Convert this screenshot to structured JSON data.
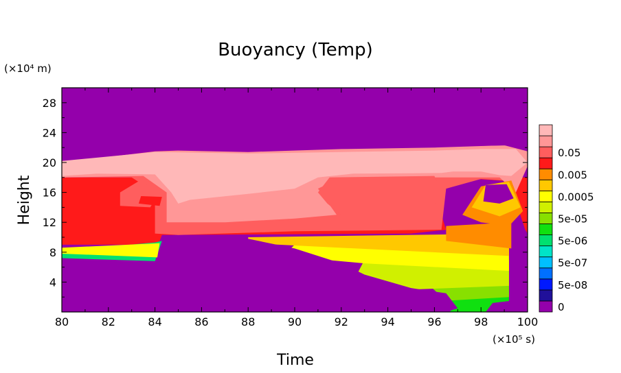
{
  "chart_data": {
    "type": "heatmap",
    "title": "Buoyancy (Temp)",
    "xlabel": "Time",
    "ylabel": "Height",
    "x_unit": "(×10⁵ s)",
    "y_unit": "(×10⁴ m)",
    "xlim": [
      80,
      100
    ],
    "ylim": [
      0,
      30
    ],
    "x_ticks": [
      "80",
      "82",
      "84",
      "86",
      "88",
      "90",
      "92",
      "94",
      "96",
      "98",
      "100"
    ],
    "y_ticks": [
      "4",
      "8",
      "12",
      "16",
      "20",
      "24",
      "28"
    ],
    "levels": [
      {
        "label": "0",
        "color": "#9400ab"
      },
      {
        "label": "",
        "color": "#20109a"
      },
      {
        "label": "5e-08",
        "color": "#0019ff"
      },
      {
        "label": "",
        "color": "#0070ff"
      },
      {
        "label": "5e-07",
        "color": "#00c0ff"
      },
      {
        "label": "",
        "color": "#00e4c8"
      },
      {
        "label": "5e-06",
        "color": "#00e070"
      },
      {
        "label": "",
        "color": "#10e010"
      },
      {
        "label": "5e-05",
        "color": "#88e000"
      },
      {
        "label": "",
        "color": "#d0f000"
      },
      {
        "label": "0.0005",
        "color": "#ffff00"
      },
      {
        "label": "",
        "color": "#ffc800"
      },
      {
        "label": "0.005",
        "color": "#ff8c00"
      },
      {
        "label": "",
        "color": "#ff1a1a"
      },
      {
        "label": "0.05",
        "color": "#ff5e5e"
      },
      {
        "label": "",
        "color": "#ff9797"
      },
      {
        "label": "",
        "color": "#ffb8b8"
      }
    ],
    "regions": [
      {
        "level": 7,
        "points": [
          [
            96.7,
            0
          ],
          [
            99.2,
            0
          ],
          [
            99.2,
            3.5
          ],
          [
            98,
            5
          ],
          [
            96.5,
            2
          ]
        ]
      },
      {
        "level": 8,
        "points": [
          [
            96.5,
            1.5
          ],
          [
            99.2,
            2
          ],
          [
            99.2,
            6
          ],
          [
            97,
            5.5
          ],
          [
            95.8,
            3.5
          ]
        ]
      },
      {
        "level": 9,
        "points": [
          [
            92.5,
            4
          ],
          [
            95,
            3
          ],
          [
            99.2,
            3.5
          ],
          [
            99.2,
            7
          ],
          [
            93,
            7
          ]
        ]
      },
      {
        "level": 10,
        "points": [
          [
            89.5,
            7.5
          ],
          [
            93,
            6.5
          ],
          [
            99.2,
            5.5
          ],
          [
            99.2,
            9
          ],
          [
            90,
            9
          ]
        ]
      },
      {
        "level": 11,
        "points": [
          [
            88,
            9.2
          ],
          [
            99.2,
            7.5
          ],
          [
            99.2,
            10.5
          ],
          [
            88,
            10
          ]
        ]
      },
      {
        "level": 12,
        "points": [
          [
            96.5,
            9.5
          ],
          [
            99.3,
            8.5
          ],
          [
            99.3,
            12
          ],
          [
            96.5,
            11.5
          ]
        ]
      },
      {
        "level": 13,
        "points": [
          [
            84.3,
            10.3
          ],
          [
            95,
            10.5
          ],
          [
            96.5,
            11
          ],
          [
            96,
            16
          ],
          [
            97.8,
            17.8
          ],
          [
            99.2,
            17.5
          ],
          [
            99.9,
            11
          ],
          [
            100,
            10.5
          ],
          [
            100,
            18
          ],
          [
            80,
            18
          ],
          [
            80,
            9
          ],
          [
            83.9,
            9
          ],
          [
            84.2,
            9.5
          ]
        ]
      },
      {
        "level": 6,
        "points": [
          [
            80,
            7.2
          ],
          [
            84,
            6.8
          ],
          [
            84.3,
            9.5
          ],
          [
            84,
            9.3
          ],
          [
            80,
            8.2
          ]
        ]
      },
      {
        "level": 10,
        "points": [
          [
            80,
            7.8
          ],
          [
            84.1,
            7.3
          ],
          [
            84.2,
            9.2
          ],
          [
            80,
            8.6
          ]
        ]
      },
      {
        "level": 14,
        "points": [
          [
            80,
            18
          ],
          [
            83,
            18
          ],
          [
            84,
            16
          ],
          [
            84,
            10.5
          ],
          [
            85,
            10.3
          ],
          [
            90,
            10.8
          ],
          [
            96.3,
            11
          ],
          [
            96.5,
            16.5
          ],
          [
            98,
            17.8
          ],
          [
            99.4,
            17.5
          ],
          [
            100,
            20
          ],
          [
            80,
            20
          ]
        ]
      },
      {
        "level": 15,
        "points": [
          [
            80,
            20
          ],
          [
            84,
            21.5
          ],
          [
            85,
            21.6
          ],
          [
            88,
            21.4
          ],
          [
            92,
            21.8
          ],
          [
            96,
            22
          ],
          [
            98,
            22.2
          ],
          [
            99,
            22.3
          ],
          [
            100,
            21.5
          ],
          [
            100,
            19.5
          ],
          [
            99.5,
            16
          ],
          [
            98.8,
            18
          ],
          [
            96.5,
            18
          ],
          [
            92,
            18
          ],
          [
            91,
            16.5
          ],
          [
            91.8,
            13
          ],
          [
            90,
            12.5
          ],
          [
            87,
            12
          ],
          [
            84.5,
            12
          ],
          [
            84.5,
            16
          ],
          [
            83.5,
            18.2
          ],
          [
            80,
            18
          ]
        ]
      },
      {
        "level": 16,
        "points": [
          [
            80,
            20.2
          ],
          [
            84,
            21.4
          ],
          [
            88,
            21.2
          ],
          [
            92,
            21.4
          ],
          [
            96,
            21.6
          ],
          [
            98,
            21.8
          ],
          [
            99.5,
            21.8
          ],
          [
            100,
            20
          ],
          [
            99.3,
            18.2
          ],
          [
            98.8,
            18.3
          ],
          [
            98,
            18.8
          ],
          [
            96.8,
            18.8
          ],
          [
            96.3,
            18.6
          ],
          [
            92.5,
            18.5
          ],
          [
            91,
            18
          ],
          [
            90,
            16.5
          ],
          [
            88,
            15.8
          ],
          [
            85.5,
            15
          ],
          [
            85,
            14.5
          ],
          [
            84.7,
            16
          ],
          [
            84,
            18.4
          ],
          [
            81.5,
            18.5
          ],
          [
            80,
            18.2
          ]
        ]
      },
      {
        "level": 14,
        "points": [
          [
            82.5,
            16
          ],
          [
            83.3,
            17.5
          ],
          [
            84.2,
            16.2
          ],
          [
            83.8,
            14
          ],
          [
            82.5,
            14.2
          ]
        ]
      },
      {
        "level": 13,
        "points": [
          [
            83.4,
            15.5
          ],
          [
            84.3,
            15.4
          ],
          [
            84.2,
            14.2
          ],
          [
            83.3,
            14.5
          ]
        ]
      },
      {
        "level": 14,
        "points": [
          [
            91,
            16
          ],
          [
            91.5,
            18
          ],
          [
            96,
            18.2
          ],
          [
            96.3,
            16
          ],
          [
            95.8,
            13
          ],
          [
            92,
            13
          ],
          [
            91.4,
            14.5
          ]
        ]
      },
      {
        "level": 12,
        "points": [
          [
            97.2,
            13
          ],
          [
            98,
            16.8
          ],
          [
            99.3,
            17.6
          ],
          [
            99.8,
            13.5
          ],
          [
            99.2,
            11.5
          ],
          [
            98,
            12
          ]
        ]
      },
      {
        "level": 11,
        "points": [
          [
            97.6,
            14
          ],
          [
            98.2,
            17
          ],
          [
            99.2,
            17.4
          ],
          [
            99.7,
            14
          ],
          [
            98.8,
            12.8
          ]
        ]
      },
      {
        "level": 0,
        "points": [
          [
            98.1,
            14.8
          ],
          [
            98.2,
            17
          ],
          [
            99.1,
            17.1
          ],
          [
            99.4,
            15.2
          ],
          [
            98.8,
            14.5
          ]
        ]
      },
      {
        "level": 0,
        "points": [
          [
            84.3,
            10.3
          ],
          [
            86,
            10.2
          ],
          [
            88,
            9.8
          ],
          [
            90,
            8.5
          ],
          [
            92,
            6.5
          ],
          [
            93,
            5
          ],
          [
            95,
            3.2
          ],
          [
            96.5,
            2.5
          ],
          [
            97,
            0.5
          ],
          [
            96.5,
            0
          ],
          [
            84.2,
            0
          ]
        ]
      },
      {
        "level": 0,
        "points": [
          [
            80,
            0
          ],
          [
            84.2,
            0
          ],
          [
            84.1,
            6.7
          ],
          [
            80,
            7.0
          ]
        ]
      },
      {
        "level": 0,
        "points": [
          [
            80,
            21.8
          ],
          [
            84,
            22.0
          ],
          [
            85,
            21.7
          ],
          [
            90,
            21.7
          ],
          [
            95,
            22.1
          ],
          [
            99.5,
            22.3
          ],
          [
            100,
            21.8
          ],
          [
            100,
            30
          ],
          [
            80,
            30
          ]
        ]
      },
      {
        "level": 0,
        "points": [
          [
            98.2,
            0
          ],
          [
            99.3,
            0
          ],
          [
            99.3,
            1.5
          ],
          [
            98.5,
            1.2
          ]
        ]
      }
    ]
  }
}
